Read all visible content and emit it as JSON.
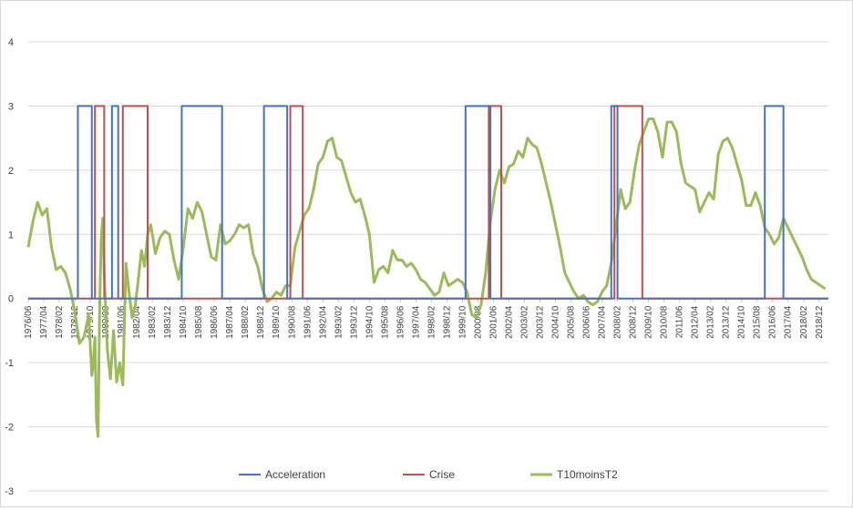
{
  "chart_data": {
    "type": "line",
    "title": "",
    "xlabel": "",
    "ylabel": "",
    "ylim": [
      -3,
      4
    ],
    "yticks": [
      -3,
      -2,
      -1,
      0,
      1,
      2,
      3,
      4
    ],
    "grid": "horizontal",
    "legend": "bottom",
    "x_start": "1976/06",
    "x_end": "2019/06",
    "x_tick_labels": [
      "1976/06",
      "1977/04",
      "1978/02",
      "1978/12",
      "1979/10",
      "1980/08",
      "1981/06",
      "1982/04",
      "1983/02",
      "1983/12",
      "1984/10",
      "1985/08",
      "1986/06",
      "1987/04",
      "1988/02",
      "1988/12",
      "1989/10",
      "1990/08",
      "1991/06",
      "1992/04",
      "1993/02",
      "1993/12",
      "1994/10",
      "1995/08",
      "1996/06",
      "1997/04",
      "1998/02",
      "1998/12",
      "1999/10",
      "2000/08",
      "2001/06",
      "2002/04",
      "2003/02",
      "2003/12",
      "2004/10",
      "2005/08",
      "2006/06",
      "2007/04",
      "2008/02",
      "2008/12",
      "2009/10",
      "2010/08",
      "2011/06",
      "2012/04",
      "2013/02",
      "2013/12",
      "2014/10",
      "2015/08",
      "2016/06",
      "2017/04",
      "2018/02",
      "2018/12"
    ],
    "series": [
      {
        "name": "Acceleration",
        "color": "#4472c4",
        "style": "step",
        "points": [
          [
            "1976/06",
            0
          ],
          [
            "1979/02",
            0
          ],
          [
            "1979/02",
            3
          ],
          [
            "1979/11",
            3
          ],
          [
            "1979/11",
            0
          ],
          [
            "1980/12",
            0
          ],
          [
            "1980/12",
            3
          ],
          [
            "1981/04",
            3
          ],
          [
            "1981/04",
            0
          ],
          [
            "1984/09",
            0
          ],
          [
            "1984/09",
            3
          ],
          [
            "1986/11",
            3
          ],
          [
            "1986/11",
            0
          ],
          [
            "1989/02",
            0
          ],
          [
            "1989/02",
            3
          ],
          [
            "1990/05",
            3
          ],
          [
            "1990/05",
            0
          ],
          [
            "1999/12",
            0
          ],
          [
            "1999/12",
            3
          ],
          [
            "2001/04",
            3
          ],
          [
            "2001/04",
            0
          ],
          [
            "2007/10",
            0
          ],
          [
            "2007/10",
            3
          ],
          [
            "2008/02",
            3
          ],
          [
            "2008/02",
            0
          ],
          [
            "2016/01",
            0
          ],
          [
            "2016/01",
            3
          ],
          [
            "2017/01",
            3
          ],
          [
            "2017/01",
            0
          ],
          [
            "2019/06",
            0
          ]
        ]
      },
      {
        "name": "Crise",
        "color": "#c0504d",
        "style": "step",
        "points": [
          [
            "1976/06",
            0
          ],
          [
            "1980/01",
            0
          ],
          [
            "1980/01",
            3
          ],
          [
            "1980/07",
            3
          ],
          [
            "1980/07",
            0
          ],
          [
            "1981/07",
            0
          ],
          [
            "1981/07",
            3
          ],
          [
            "1982/11",
            3
          ],
          [
            "1982/11",
            0
          ],
          [
            "1990/07",
            0
          ],
          [
            "1990/07",
            3
          ],
          [
            "1991/03",
            3
          ],
          [
            "1991/03",
            0
          ],
          [
            "2001/03",
            0
          ],
          [
            "2001/03",
            3
          ],
          [
            "2001/11",
            3
          ],
          [
            "2001/11",
            0
          ],
          [
            "2007/12",
            0
          ],
          [
            "2007/12",
            3
          ],
          [
            "2009/06",
            3
          ],
          [
            "2009/06",
            0
          ],
          [
            "2019/06",
            0
          ]
        ]
      },
      {
        "name": "T10moinsT2",
        "color": "#9bbb59",
        "style": "line",
        "points": [
          [
            "1976/06",
            0.8
          ],
          [
            "1976/09",
            1.2
          ],
          [
            "1976/12",
            1.5
          ],
          [
            "1977/03",
            1.3
          ],
          [
            "1977/06",
            1.4
          ],
          [
            "1977/09",
            0.8
          ],
          [
            "1977/12",
            0.45
          ],
          [
            "1978/03",
            0.5
          ],
          [
            "1978/06",
            0.4
          ],
          [
            "1978/09",
            0.15
          ],
          [
            "1978/12",
            -0.2
          ],
          [
            "1979/03",
            -0.7
          ],
          [
            "1979/06",
            -0.6
          ],
          [
            "1979/09",
            -0.25
          ],
          [
            "1979/11",
            -1.2
          ],
          [
            "1979/12",
            -1.0
          ],
          [
            "1980/01",
            -0.6
          ],
          [
            "1980/02",
            -1.9
          ],
          [
            "1980/03",
            -2.15
          ],
          [
            "1980/04",
            -0.2
          ],
          [
            "1980/05",
            0.9
          ],
          [
            "1980/06",
            1.25
          ],
          [
            "1980/07",
            0.4
          ],
          [
            "1980/09",
            -0.8
          ],
          [
            "1980/11",
            -1.25
          ],
          [
            "1981/01",
            -0.5
          ],
          [
            "1981/03",
            -1.3
          ],
          [
            "1981/05",
            -1.0
          ],
          [
            "1981/07",
            -1.35
          ],
          [
            "1981/09",
            0.55
          ],
          [
            "1981/11",
            0.1
          ],
          [
            "1982/01",
            -0.3
          ],
          [
            "1982/03",
            -0.1
          ],
          [
            "1982/05",
            0.3
          ],
          [
            "1982/07",
            0.75
          ],
          [
            "1982/09",
            0.5
          ],
          [
            "1982/11",
            1.0
          ],
          [
            "1983/01",
            1.15
          ],
          [
            "1983/04",
            0.7
          ],
          [
            "1983/07",
            0.95
          ],
          [
            "1983/10",
            1.05
          ],
          [
            "1984/01",
            1.0
          ],
          [
            "1984/04",
            0.6
          ],
          [
            "1984/07",
            0.3
          ],
          [
            "1984/10",
            0.8
          ],
          [
            "1985/01",
            1.4
          ],
          [
            "1985/04",
            1.25
          ],
          [
            "1985/07",
            1.5
          ],
          [
            "1985/10",
            1.35
          ],
          [
            "1986/01",
            1.0
          ],
          [
            "1986/04",
            0.65
          ],
          [
            "1986/07",
            0.6
          ],
          [
            "1986/10",
            1.15
          ],
          [
            "1987/01",
            0.85
          ],
          [
            "1987/04",
            0.9
          ],
          [
            "1987/07",
            1.0
          ],
          [
            "1987/10",
            1.15
          ],
          [
            "1988/01",
            1.1
          ],
          [
            "1988/04",
            1.15
          ],
          [
            "1988/07",
            0.7
          ],
          [
            "1988/10",
            0.5
          ],
          [
            "1989/01",
            0.15
          ],
          [
            "1989/04",
            -0.05
          ],
          [
            "1989/07",
            0.0
          ],
          [
            "1989/10",
            0.1
          ],
          [
            "1990/01",
            0.05
          ],
          [
            "1990/04",
            0.2
          ],
          [
            "1990/07",
            0.2
          ],
          [
            "1990/10",
            0.8
          ],
          [
            "1991/01",
            1.05
          ],
          [
            "1991/04",
            1.3
          ],
          [
            "1991/07",
            1.4
          ],
          [
            "1991/10",
            1.7
          ],
          [
            "1992/01",
            2.1
          ],
          [
            "1992/04",
            2.2
          ],
          [
            "1992/07",
            2.45
          ],
          [
            "1992/10",
            2.5
          ],
          [
            "1993/01",
            2.2
          ],
          [
            "1993/04",
            2.15
          ],
          [
            "1993/07",
            1.9
          ],
          [
            "1993/10",
            1.65
          ],
          [
            "1994/01",
            1.5
          ],
          [
            "1994/04",
            1.55
          ],
          [
            "1994/07",
            1.3
          ],
          [
            "1994/10",
            1.0
          ],
          [
            "1995/01",
            0.25
          ],
          [
            "1995/04",
            0.45
          ],
          [
            "1995/07",
            0.5
          ],
          [
            "1995/10",
            0.4
          ],
          [
            "1996/01",
            0.75
          ],
          [
            "1996/04",
            0.6
          ],
          [
            "1996/07",
            0.6
          ],
          [
            "1996/10",
            0.5
          ],
          [
            "1997/01",
            0.55
          ],
          [
            "1997/04",
            0.45
          ],
          [
            "1997/07",
            0.3
          ],
          [
            "1997/10",
            0.25
          ],
          [
            "1998/01",
            0.15
          ],
          [
            "1998/04",
            0.05
          ],
          [
            "1998/07",
            0.1
          ],
          [
            "1998/10",
            0.4
          ],
          [
            "1999/01",
            0.2
          ],
          [
            "1999/04",
            0.25
          ],
          [
            "1999/07",
            0.3
          ],
          [
            "1999/10",
            0.25
          ],
          [
            "2000/01",
            0.1
          ],
          [
            "2000/04",
            -0.25
          ],
          [
            "2000/07",
            -0.3
          ],
          [
            "2000/10",
            -0.1
          ],
          [
            "2001/01",
            0.4
          ],
          [
            "2001/04",
            1.2
          ],
          [
            "2001/07",
            1.7
          ],
          [
            "2001/10",
            2.0
          ],
          [
            "2002/01",
            1.8
          ],
          [
            "2002/04",
            2.05
          ],
          [
            "2002/07",
            2.1
          ],
          [
            "2002/10",
            2.3
          ],
          [
            "2003/01",
            2.2
          ],
          [
            "2003/04",
            2.5
          ],
          [
            "2003/07",
            2.4
          ],
          [
            "2003/10",
            2.35
          ],
          [
            "2004/01",
            2.1
          ],
          [
            "2004/04",
            1.8
          ],
          [
            "2004/07",
            1.5
          ],
          [
            "2004/10",
            1.15
          ],
          [
            "2005/01",
            0.8
          ],
          [
            "2005/04",
            0.4
          ],
          [
            "2005/07",
            0.25
          ],
          [
            "2005/10",
            0.1
          ],
          [
            "2006/01",
            0.0
          ],
          [
            "2006/04",
            0.05
          ],
          [
            "2006/07",
            -0.05
          ],
          [
            "2006/10",
            -0.1
          ],
          [
            "2007/01",
            -0.05
          ],
          [
            "2007/04",
            0.1
          ],
          [
            "2007/07",
            0.2
          ],
          [
            "2007/10",
            0.55
          ],
          [
            "2008/01",
            1.1
          ],
          [
            "2008/04",
            1.7
          ],
          [
            "2008/07",
            1.4
          ],
          [
            "2008/10",
            1.5
          ],
          [
            "2009/01",
            2.0
          ],
          [
            "2009/04",
            2.4
          ],
          [
            "2009/07",
            2.6
          ],
          [
            "2009/10",
            2.8
          ],
          [
            "2010/01",
            2.8
          ],
          [
            "2010/04",
            2.6
          ],
          [
            "2010/07",
            2.2
          ],
          [
            "2010/10",
            2.75
          ],
          [
            "2011/01",
            2.75
          ],
          [
            "2011/04",
            2.6
          ],
          [
            "2011/07",
            2.1
          ],
          [
            "2011/10",
            1.8
          ],
          [
            "2012/01",
            1.75
          ],
          [
            "2012/04",
            1.7
          ],
          [
            "2012/07",
            1.35
          ],
          [
            "2012/10",
            1.5
          ],
          [
            "2013/01",
            1.65
          ],
          [
            "2013/04",
            1.55
          ],
          [
            "2013/07",
            2.25
          ],
          [
            "2013/10",
            2.45
          ],
          [
            "2014/01",
            2.5
          ],
          [
            "2014/04",
            2.35
          ],
          [
            "2014/07",
            2.1
          ],
          [
            "2014/10",
            1.85
          ],
          [
            "2015/01",
            1.45
          ],
          [
            "2015/04",
            1.45
          ],
          [
            "2015/07",
            1.65
          ],
          [
            "2015/10",
            1.45
          ],
          [
            "2016/01",
            1.1
          ],
          [
            "2016/04",
            1.0
          ],
          [
            "2016/07",
            0.85
          ],
          [
            "2016/10",
            0.95
          ],
          [
            "2017/01",
            1.25
          ],
          [
            "2017/04",
            1.1
          ],
          [
            "2017/07",
            0.95
          ],
          [
            "2017/10",
            0.8
          ],
          [
            "2018/01",
            0.65
          ],
          [
            "2018/04",
            0.45
          ],
          [
            "2018/07",
            0.3
          ],
          [
            "2018/10",
            0.25
          ],
          [
            "2019/01",
            0.2
          ],
          [
            "2019/04",
            0.15
          ]
        ]
      }
    ]
  }
}
